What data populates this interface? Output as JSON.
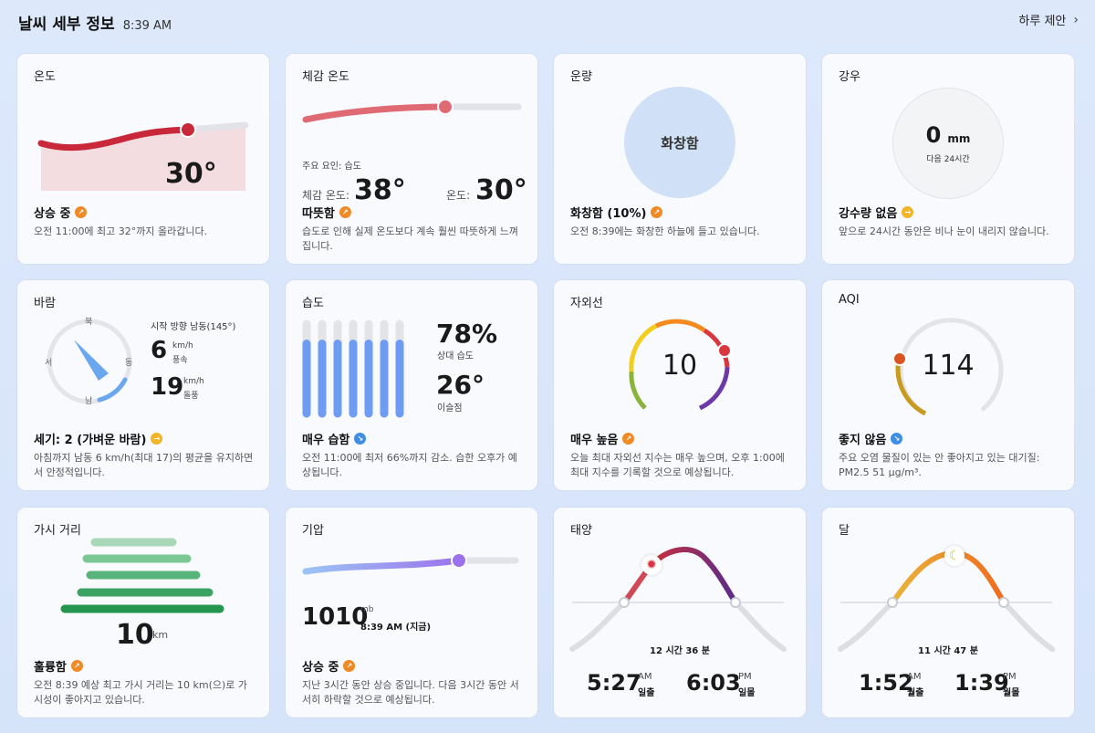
{
  "header": {
    "title": "날씨 세부 정보",
    "time": "8:39 AM",
    "suggest_label": "하루 제안"
  },
  "colors": {
    "temp_red": "#c8283a",
    "badge_orange": "#f08a24",
    "badge_yellow": "#f2b52a",
    "badge_blue": "#3f8ee6",
    "humidity_blue": "#6d9cf2",
    "cloud_circle": "#cfe0f7"
  },
  "temperature": {
    "title": "온도",
    "value": "30°",
    "status": "상승 중",
    "status_icon": "trend-up-icon",
    "desc": "오전 11:00에 최고 32°까지 올라갑니다."
  },
  "feels_like": {
    "title": "체감 온도",
    "factor_label": "주요 요인: 습도",
    "feels_label": "체감 온도:",
    "feels_value": "38°",
    "temp_label": "온도:",
    "temp_value": "30°",
    "status": "따뜻함",
    "status_icon": "trend-up-icon",
    "desc": "습도로 인해 실제 온도보다 계속 훨씬 따뜻하게 느껴집니다."
  },
  "cloud": {
    "title": "운량",
    "circle_label": "화창함",
    "status": "화창함 (10%)",
    "status_icon": "trend-up-icon",
    "desc": "오전 8:39에는 화창한 하늘에 들고 있습니다."
  },
  "precip": {
    "title": "강우",
    "amount": "0",
    "unit": "mm",
    "sub": "다음 24시간",
    "status": "강수량 없음",
    "status_icon": "trend-flat-icon",
    "desc": "앞으로 24시간 동안은 비나 눈이 내리지 않습니다."
  },
  "wind": {
    "title": "바람",
    "dirs": {
      "n": "북",
      "e": "동",
      "s": "남",
      "w": "서"
    },
    "start_dir": "시작 방향 남동(145°)",
    "speed_value": "6",
    "speed_unit": "km/h",
    "speed_label": "풍속",
    "gust_value": "19",
    "gust_unit": "km/h",
    "gust_label": "돌풍",
    "status": "세기: 2 (가벼운 바람)",
    "status_icon": "trend-flat-icon",
    "desc": "아침까지 남동 6 km/h(최대 17)의 평균을 유지하면서 안정적입니다."
  },
  "humidity": {
    "title": "습도",
    "level": 0.78,
    "bars": [
      0.78,
      0.78,
      0.78,
      0.78,
      0.78,
      0.78,
      0.78
    ],
    "rh_value": "78%",
    "rh_label": "상대 습도",
    "dew_value": "26°",
    "dew_label": "이슬점",
    "status": "매우 습함",
    "status_icon": "trend-down-icon",
    "desc": "오전 11:00에 최저 66%까지 감소. 습한 오후가 예상됩니다."
  },
  "uv": {
    "title": "자외선",
    "value": "10",
    "status": "매우 높음",
    "status_icon": "trend-up-icon",
    "desc": "오늘 최대 자외선 지수는 매우 높으며, 오후 1:00에 최대 지수를 기록할 것으로 예상됩니다."
  },
  "aqi": {
    "title": "AQI",
    "value": "114",
    "status": "좋지 않음",
    "status_icon": "trend-down-icon",
    "desc": "주요 오염 물질이 있는 안 좋아지고 있는 대기질: PM2.5 51 μg/m³."
  },
  "visibility": {
    "title": "가시 거리",
    "value": "10",
    "unit": "km",
    "status": "훌륭함",
    "status_icon": "trend-up-icon",
    "desc": "오전 8:39 예상 최고 가시 거리는 10 km(으)로 가시성이 좋아지고 있습니다."
  },
  "pressure": {
    "title": "기압",
    "value": "1010",
    "unit": "mb",
    "time": "8:39 AM (지금)",
    "status": "상승 중",
    "status_icon": "trend-up-icon",
    "desc": "지난 3시간 동안 상승 중입니다. 다음 3시간 동안 서서히 하락할 것으로 예상됩니다."
  },
  "sun": {
    "title": "태양",
    "duration": "12 시간 36 분",
    "rise_time": "5:27",
    "rise_ampm": "AM",
    "rise_label": "일출",
    "set_time": "6:03",
    "set_ampm": "PM",
    "set_label": "일몰"
  },
  "moon": {
    "title": "달",
    "duration": "11 시간 47 분",
    "rise_time": "1:52",
    "rise_ampm": "AM",
    "rise_label": "월출",
    "set_time": "1:39",
    "set_ampm": "PM",
    "set_label": "월몰"
  }
}
